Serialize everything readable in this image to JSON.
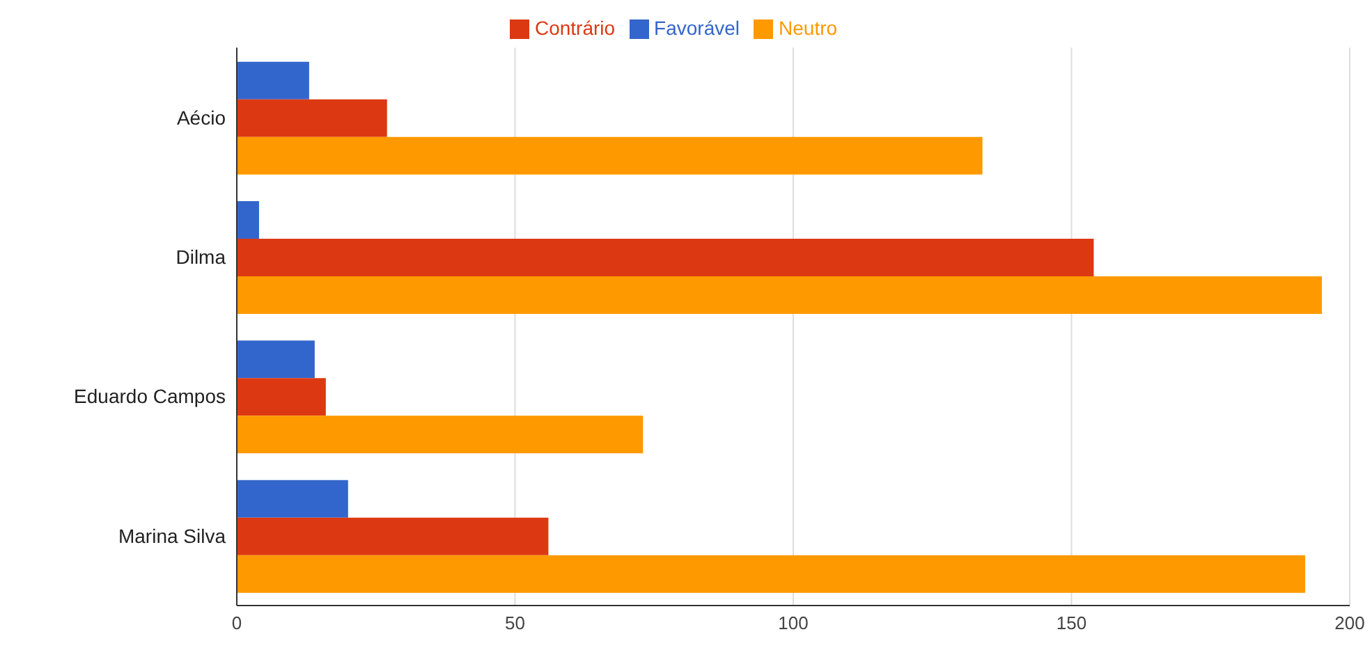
{
  "chart_data": {
    "type": "bar",
    "orientation": "horizontal",
    "categories": [
      "Aécio",
      "Dilma",
      "Eduardo Campos",
      "Marina Silva"
    ],
    "series": [
      {
        "name": "Favorável",
        "color": "#3366cc",
        "values": [
          13,
          4,
          14,
          20
        ]
      },
      {
        "name": "Contrário",
        "color": "#dc3912",
        "values": [
          27,
          154,
          16,
          56
        ]
      },
      {
        "name": "Neutro",
        "color": "#ff9900",
        "values": [
          134,
          195,
          73,
          192
        ]
      }
    ],
    "xlim": [
      0,
      200
    ],
    "xticks": [
      0,
      50,
      100,
      150,
      200
    ],
    "grid": "x",
    "legend": "top"
  }
}
